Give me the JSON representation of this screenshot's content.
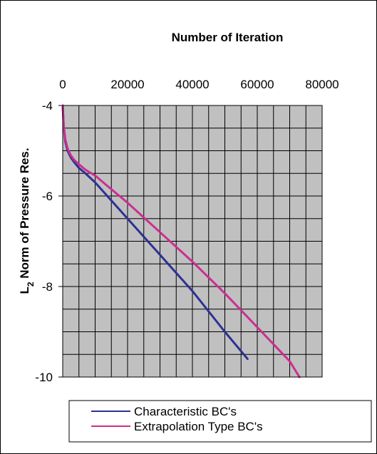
{
  "chart_data": {
    "type": "line",
    "title": "Number of Iteration",
    "xlabel": "Number of Iteration",
    "ylabel": "L2 Norm of Pressure Res.",
    "ylabel_parts": {
      "main": "L",
      "sub": "2",
      "rest": " Norm of Pressure Res."
    },
    "xlim": [
      0,
      80000
    ],
    "ylim": [
      -10,
      -4
    ],
    "x_ticks": [
      0,
      20000,
      40000,
      60000,
      80000
    ],
    "x_tick_labels": [
      "0",
      "20000",
      "40000",
      "60000",
      "80000"
    ],
    "y_ticks": [
      -4,
      -6,
      -8,
      -10
    ],
    "y_tick_labels": [
      "-4",
      "-6",
      "-8",
      "-10"
    ],
    "x_axis_position": "top",
    "grid": true,
    "plot_background": "#c0c0c0",
    "legend_position": "bottom",
    "series": [
      {
        "name": "Characteristic BC's",
        "color": "#2e3192",
        "x": [
          0,
          300,
          800,
          1500,
          2500,
          3500,
          5000,
          7000,
          10000,
          15000,
          20000,
          30000,
          40000,
          50000,
          57000
        ],
        "y": [
          -4.0,
          -4.45,
          -4.8,
          -5.0,
          -5.15,
          -5.25,
          -5.38,
          -5.5,
          -5.7,
          -6.1,
          -6.5,
          -7.3,
          -8.1,
          -9.0,
          -9.6
        ]
      },
      {
        "name": "Extrapolation Type BC's",
        "color": "#cc2e8f",
        "x": [
          0,
          300,
          800,
          1500,
          2500,
          3500,
          5000,
          7000,
          10000,
          15000,
          20000,
          30000,
          40000,
          50000,
          60000,
          70000,
          73000
        ],
        "y": [
          -4.0,
          -4.45,
          -4.75,
          -4.95,
          -5.1,
          -5.2,
          -5.3,
          -5.42,
          -5.55,
          -5.85,
          -6.15,
          -6.8,
          -7.45,
          -8.15,
          -8.9,
          -9.65,
          -10.0
        ]
      }
    ]
  }
}
